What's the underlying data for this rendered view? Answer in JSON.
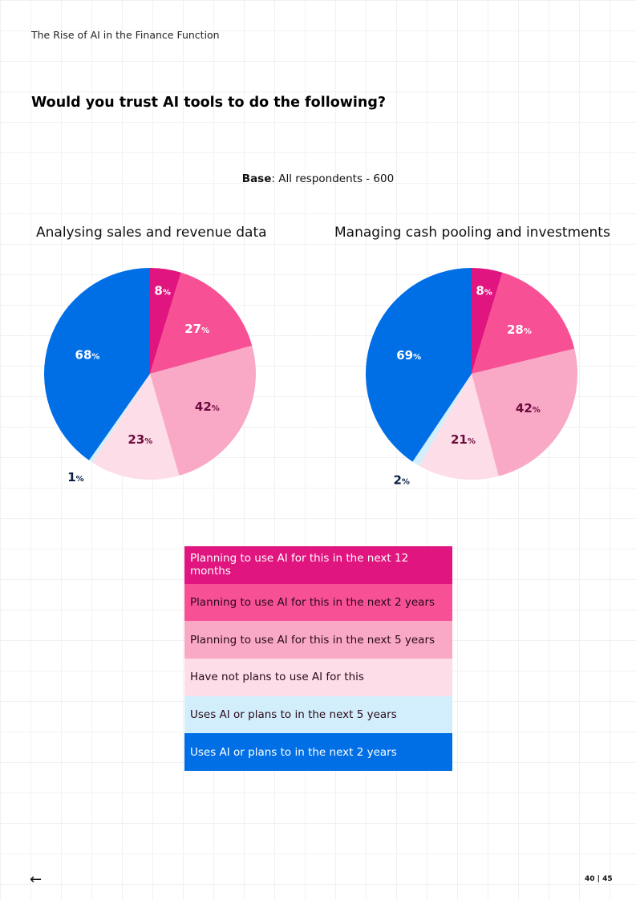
{
  "header": {
    "doc_title": "The Rise of AI in the Finance Function",
    "question": "Would you trust AI tools to do the following?",
    "base_label": "Base",
    "base_text": ": All respondents -  600"
  },
  "colors": [
    "#e0157f",
    "#f75094",
    "#f9a8c6",
    "#fddde8",
    "#d2eefc",
    "#006fe6"
  ],
  "label_colors": [
    "#ffffff",
    "#ffffff",
    "#6b0a3c",
    "#6b0a3c",
    "#0a1f44",
    "#ffffff"
  ],
  "legend": [
    {
      "label": "Planning to use AI for this in the next 12 months",
      "color": "#e0157f",
      "text": "#ffffff"
    },
    {
      "label": "Planning to use AI for this in the next 2 years",
      "color": "#f75094",
      "text": "#2a0a1a"
    },
    {
      "label": "Planning to use AI for this in the next 5 years",
      "color": "#f9a8c6",
      "text": "#2a0a1a"
    },
    {
      "label": "Have not plans to use AI for this",
      "color": "#fddde8",
      "text": "#2a0a1a"
    },
    {
      "label": "Uses AI or plans to in the next 5 years",
      "color": "#d2eefc",
      "text": "#2a0a1a"
    },
    {
      "label": "Uses AI or plans to in the next 2 years",
      "color": "#006fe6",
      "text": "#ffffff"
    }
  ],
  "chart_data": [
    {
      "type": "pie",
      "title": "Analysing sales and revenue data",
      "categories": [
        "Planning to use AI for this in the next 12 months",
        "Planning to use AI for this in the next 2 years",
        "Planning to use AI for this in the next 5 years",
        "Have not plans to use AI for this",
        "Uses AI or plans to in the next 5 years",
        "Uses AI or plans to in the next 2 years"
      ],
      "values": [
        8,
        27,
        42,
        23,
        1,
        68
      ],
      "unit": "%"
    },
    {
      "type": "pie",
      "title": "Managing cash pooling and investments",
      "categories": [
        "Planning to use AI for this in the next 12 months",
        "Planning to use AI for this in the next 2 years",
        "Planning to use AI for this in the next 5 years",
        "Have not plans to use AI for this",
        "Uses AI or plans to in the next 5 years",
        "Uses AI or plans to in the next 2 years"
      ],
      "values": [
        8,
        28,
        42,
        21,
        2,
        69
      ],
      "unit": "%"
    }
  ],
  "footer": {
    "back_icon": "arrow-left-icon",
    "page": "40 | 45"
  }
}
